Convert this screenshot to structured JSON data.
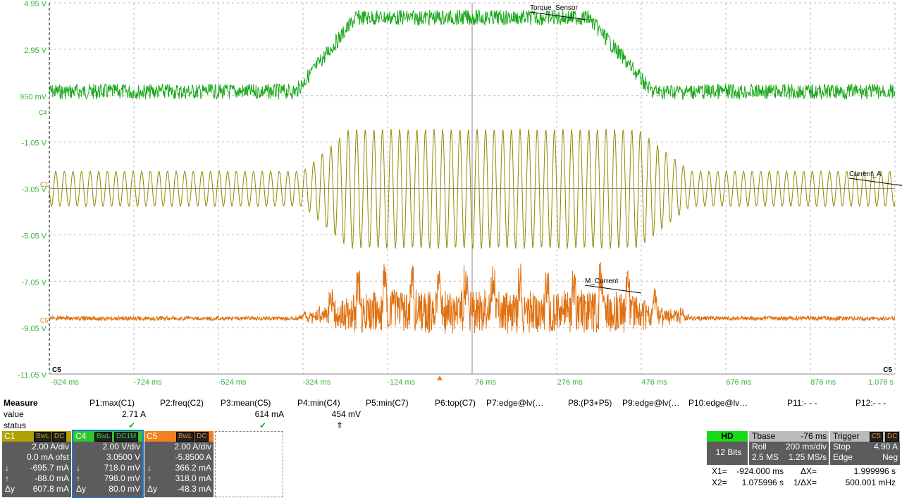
{
  "plot": {
    "y_labels": [
      "4.95 V",
      "2.95 V",
      "950 mV",
      "-1.05 V",
      "-3.05 V",
      "-5.05 V",
      "-7.05 V",
      "-9.05 V",
      "-11.05 V"
    ],
    "x_labels": [
      "-924 ms",
      "-724 ms",
      "-524 ms",
      "-324 ms",
      "-124 ms",
      "76 ms",
      "276 ms",
      "476 ms",
      "676 ms",
      "876 ms",
      "1.076 s"
    ],
    "trace_labels": [
      "Torque_Sensor",
      "Current_A",
      "M_Current"
    ],
    "markers": {
      "c4": "C4",
      "c1": "C1",
      "c5": "C5",
      "bottom_left": "C5",
      "bottom_right": "C5"
    }
  },
  "measure": {
    "title": "Measure",
    "row_labels": [
      "value",
      "status"
    ],
    "params": [
      {
        "name": "P1:max(C1)",
        "value": "2.71 A",
        "status": "✔"
      },
      {
        "name": "P2:freq(C2)"
      },
      {
        "name": "P3:mean(C5)",
        "value": "614 mA",
        "status": "✔"
      },
      {
        "name": "P4:min(C4)",
        "value": "454 mV",
        "status": "⇑"
      },
      {
        "name": "P5:min(C7)"
      },
      {
        "name": "P6:top(C7)"
      },
      {
        "name": "P7:edge@lv(…"
      },
      {
        "name": "P8:(P3+P5)"
      },
      {
        "name": "P9:edge@lv(…"
      },
      {
        "name": "P10:edge@lv…"
      },
      {
        "name": "P11:- - -"
      },
      {
        "name": "P12:- - -"
      }
    ]
  },
  "channels": [
    {
      "name": "C1",
      "tags": [
        "BwL",
        "DC"
      ],
      "scale": "2.00 A/div",
      "offset": "0.0 mA ofst",
      "rows": [
        [
          "↓",
          "-695.7 mA"
        ],
        [
          "↑",
          "-88.0 mA"
        ],
        [
          "Δy",
          "607.8 mA"
        ]
      ]
    },
    {
      "name": "C4",
      "tags": [
        "BwL",
        "DC1M"
      ],
      "scale": "2.00 V/div",
      "offset": "3.0500 V",
      "rows": [
        [
          "↓",
          "718.0 mV"
        ],
        [
          "↑",
          "798.0 mV"
        ],
        [
          "Δy",
          "80.0 mV"
        ]
      ]
    },
    {
      "name": "C5",
      "tags": [
        "BwL",
        "DC"
      ],
      "scale": "2.00 A/div",
      "offset": "-5.8500 A",
      "rows": [
        [
          "↓",
          "366.2 mA"
        ],
        [
          "↑",
          "318.0 mA"
        ],
        [
          "Δy",
          "-48.3 mA"
        ]
      ]
    }
  ],
  "acquisition": {
    "hd": "HD",
    "bits": "12 Bits",
    "tbase": {
      "title": "Tbase",
      "delay": "-76 ms",
      "mode": "Roll",
      "div": "200 ms/div",
      "samples": "2.5 MS",
      "rate": "1.25 MS/s"
    },
    "trigger": {
      "title": "Trigger",
      "source": "C5",
      "coupling": "DC",
      "state": "Stop",
      "level": "4.90 A",
      "type": "Edge",
      "slope": "Neg"
    }
  },
  "cursors": [
    [
      "X1=",
      "-924.000 ms",
      "ΔX=",
      "1.999996 s"
    ],
    [
      "X2=",
      "1.075996 s",
      "1/ΔX=",
      "500.001 mHz"
    ]
  ]
}
